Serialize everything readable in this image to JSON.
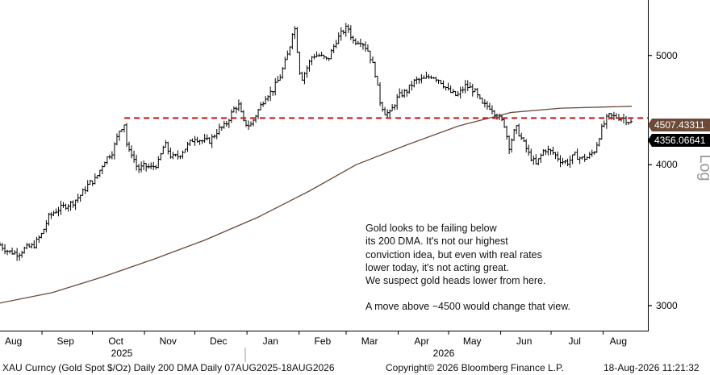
{
  "chart_data": {
    "type": "ohlc",
    "title": "",
    "y_scale": "log",
    "y_scale_label": "Log",
    "ylim": [
      2850,
      5600
    ],
    "y_ticks": [
      3000,
      4000,
      5000
    ],
    "x_range": [
      "2025-08-07",
      "2026-08-18"
    ],
    "x_tick_labels": [
      "Aug",
      "Sep",
      "Oct",
      "Nov",
      "Dec",
      "Jan",
      "Feb",
      "Mar",
      "Apr",
      "May",
      "Jun",
      "Jul",
      "Aug"
    ],
    "year_labels": [
      "2025",
      "2026"
    ],
    "series": [
      {
        "name": "XAU Curncy (Gold Spot $/Oz) Daily",
        "style": "ohlc-bars",
        "color": "#000000",
        "last_value": "4356.06641",
        "points": [
          [
            "2025-08-07",
            3395
          ],
          [
            "2025-08-12",
            3350
          ],
          [
            "2025-08-18",
            3335
          ],
          [
            "2025-08-22",
            3372
          ],
          [
            "2025-08-27",
            3390
          ],
          [
            "2025-09-01",
            3475
          ],
          [
            "2025-09-05",
            3595
          ],
          [
            "2025-09-09",
            3640
          ],
          [
            "2025-09-15",
            3680
          ],
          [
            "2025-09-19",
            3700
          ],
          [
            "2025-09-24",
            3760
          ],
          [
            "2025-09-29",
            3850
          ],
          [
            "2025-10-03",
            3885
          ],
          [
            "2025-10-08",
            4030
          ],
          [
            "2025-10-13",
            4110
          ],
          [
            "2025-10-17",
            4290
          ],
          [
            "2025-10-20",
            4350
          ],
          [
            "2025-10-22",
            4100
          ],
          [
            "2025-10-24",
            4110
          ],
          [
            "2025-10-28",
            3960
          ],
          [
            "2025-11-01",
            3990
          ],
          [
            "2025-11-05",
            3975
          ],
          [
            "2025-11-09",
            4010
          ],
          [
            "2025-11-13",
            4180
          ],
          [
            "2025-11-17",
            4060
          ],
          [
            "2025-11-21",
            4070
          ],
          [
            "2025-11-26",
            4150
          ],
          [
            "2025-12-01",
            4230
          ],
          [
            "2025-12-05",
            4200
          ],
          [
            "2025-12-10",
            4200
          ],
          [
            "2025-12-15",
            4300
          ],
          [
            "2025-12-19",
            4330
          ],
          [
            "2025-12-24",
            4480
          ],
          [
            "2025-12-27",
            4520
          ],
          [
            "2025-12-30",
            4360
          ],
          [
            "2026-01-03",
            4330
          ],
          [
            "2026-01-07",
            4450
          ],
          [
            "2026-01-12",
            4600
          ],
          [
            "2026-01-16",
            4650
          ],
          [
            "2026-01-21",
            4800
          ],
          [
            "2026-01-26",
            5050
          ],
          [
            "2026-01-29",
            5350
          ],
          [
            "2026-02-02",
            4750
          ],
          [
            "2026-02-05",
            4850
          ],
          [
            "2026-02-09",
            5000
          ],
          [
            "2026-02-13",
            5000
          ],
          [
            "2026-02-18",
            4950
          ],
          [
            "2026-02-23",
            5150
          ],
          [
            "2026-02-27",
            5250
          ],
          [
            "2026-03-02",
            5300
          ],
          [
            "2026-03-05",
            5150
          ],
          [
            "2026-03-10",
            5150
          ],
          [
            "2026-03-14",
            5050
          ],
          [
            "2026-03-18",
            4850
          ],
          [
            "2026-03-21",
            4560
          ],
          [
            "2026-03-24",
            4450
          ],
          [
            "2026-03-27",
            4440
          ],
          [
            "2026-04-01",
            4600
          ],
          [
            "2026-04-06",
            4650
          ],
          [
            "2026-04-11",
            4750
          ],
          [
            "2026-04-16",
            4760
          ],
          [
            "2026-04-21",
            4800
          ],
          [
            "2026-04-26",
            4750
          ],
          [
            "2026-05-01",
            4650
          ],
          [
            "2026-05-06",
            4600
          ],
          [
            "2026-05-11",
            4700
          ],
          [
            "2026-05-16",
            4660
          ],
          [
            "2026-05-21",
            4520
          ],
          [
            "2026-05-26",
            4500
          ],
          [
            "2026-05-31",
            4400
          ],
          [
            "2026-06-03",
            4350
          ],
          [
            "2026-06-06",
            4150
          ],
          [
            "2026-06-10",
            4320
          ],
          [
            "2026-06-14",
            4200
          ],
          [
            "2026-06-18",
            4080
          ],
          [
            "2026-06-22",
            4000
          ],
          [
            "2026-06-27",
            4130
          ],
          [
            "2026-07-02",
            4100
          ],
          [
            "2026-07-07",
            4030
          ],
          [
            "2026-07-11",
            4020
          ],
          [
            "2026-07-15",
            4080
          ],
          [
            "2026-07-19",
            4050
          ],
          [
            "2026-07-23",
            4060
          ],
          [
            "2026-07-27",
            4120
          ],
          [
            "2026-07-31",
            4300
          ],
          [
            "2026-08-04",
            4420
          ],
          [
            "2026-08-08",
            4410
          ],
          [
            "2026-08-13",
            4400
          ],
          [
            "2026-08-18",
            4356
          ]
        ]
      },
      {
        "name": "200 DMA Daily",
        "style": "line",
        "color": "#6b4a38",
        "last_value": "4507.43311",
        "points": [
          [
            "2025-08-07",
            3015
          ],
          [
            "2025-09-07",
            3080
          ],
          [
            "2025-10-07",
            3180
          ],
          [
            "2025-11-07",
            3300
          ],
          [
            "2025-12-07",
            3430
          ],
          [
            "2026-01-07",
            3590
          ],
          [
            "2026-02-07",
            3790
          ],
          [
            "2026-03-07",
            4000
          ],
          [
            "2026-04-07",
            4170
          ],
          [
            "2026-05-07",
            4330
          ],
          [
            "2026-06-07",
            4450
          ],
          [
            "2026-07-07",
            4490
          ],
          [
            "2026-08-18",
            4507
          ]
        ]
      }
    ],
    "reference_line": {
      "value": 4400,
      "style": "dashed",
      "color": "#cc1111"
    },
    "grid": false,
    "legend": "none"
  },
  "annotation": {
    "lines": [
      "Gold looks to be failing below",
      "its 200 DMA. It's not our highest",
      "conviction idea, but even with real rates",
      "lower today, it's not acting great.",
      "We suspect gold heads lower from here."
    ],
    "second_paragraph": "A move above ~4500 would change that view."
  },
  "footer": {
    "left": "XAU Curncy (Gold Spot  $/Oz) Daily 200 DMA Daily 07AUG2025-18AUG2026",
    "center": "Copyright© 2026 Bloomberg Finance L.P.",
    "right": "18-Aug-2026 11:21:32"
  }
}
